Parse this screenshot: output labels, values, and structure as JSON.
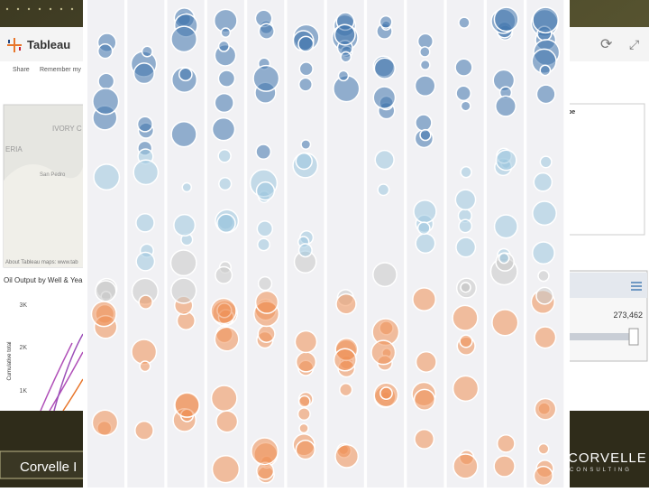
{
  "app": {
    "name": "Tableau",
    "toolbar": [
      "Share",
      "Remember my c"
    ]
  },
  "map": {
    "labels": [
      "IVORY C",
      "ERIA",
      "San Pedro"
    ],
    "credit": "About Tableau maps: www.tab"
  },
  "chart": {
    "title": "Oil Output by Well & Year",
    "yaxis_label": "Cumulative total",
    "yticks": [
      "3K",
      "2K",
      "1K"
    ]
  },
  "legend": {
    "title": "pe"
  },
  "slider": {
    "value": "273,462"
  },
  "footer": {
    "left": "Corvelle I",
    "brand": "CORVELLE",
    "tagline": "CONSULTING"
  }
}
